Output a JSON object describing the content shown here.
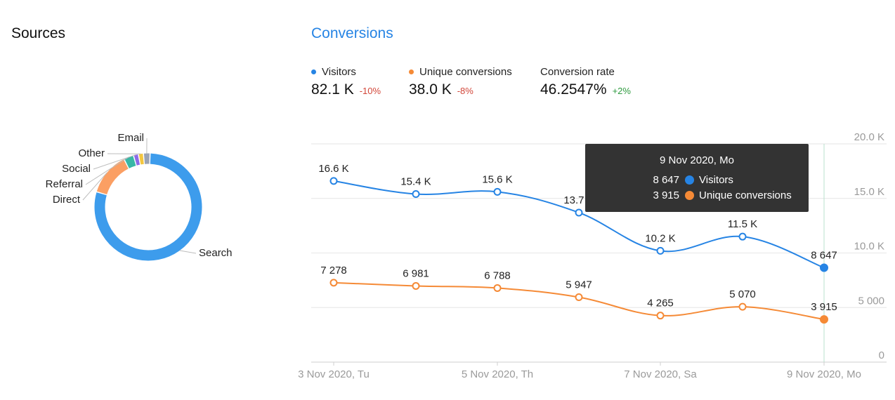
{
  "sources": {
    "title": "Sources",
    "chart_data": {
      "type": "pie",
      "categories": [
        "Search",
        "Direct",
        "Referral",
        "Social",
        "Other",
        "Email"
      ],
      "values": [
        79,
        13,
        3,
        1.5,
        1.5,
        2
      ],
      "colors": [
        "#3d9cec",
        "#fb9f63",
        "#39b7a6",
        "#8d6be8",
        "#f3c63f",
        "#9aa3b5"
      ]
    }
  },
  "conversions": {
    "title": "Conversions",
    "kpis": [
      {
        "label": "Visitors",
        "value": "82.1 K",
        "delta": "-10%",
        "dot": "#2684e4",
        "trend": "neg"
      },
      {
        "label": "Unique conversions",
        "value": "38.0 K",
        "delta": "-8%",
        "dot": "#f58a36",
        "trend": "neg"
      },
      {
        "label": "Conversion rate",
        "value": "46.2547%",
        "delta": "+2%",
        "dot": "",
        "trend": "pos"
      }
    ],
    "tooltip": {
      "title": "9 Nov 2020, Mo",
      "rows": [
        {
          "value": "8 647",
          "label": "Visitors",
          "color": "#2684e4"
        },
        {
          "value": "3 915",
          "label": "Unique conversions",
          "color": "#f58a36"
        }
      ]
    }
  },
  "chart_data": {
    "type": "line",
    "x": [
      "3 Nov 2020, Tu",
      "4 Nov 2020",
      "5 Nov 2020, Th",
      "6 Nov 2020",
      "7 Nov 2020, Sa",
      "8 Nov 2020",
      "9 Nov 2020, Mo"
    ],
    "x_tick_labels": [
      "3 Nov 2020, Tu",
      "",
      "5 Nov 2020, Th",
      "",
      "7 Nov 2020, Sa",
      "",
      "9 Nov 2020, Mo"
    ],
    "y_tick_labels": [
      "0",
      "5 000",
      "10.0 K",
      "15.0 K",
      "20.0 K"
    ],
    "y_ticks": [
      0,
      5000,
      10000,
      15000,
      20000
    ],
    "ylim": [
      0,
      20000
    ],
    "grid": true,
    "series": [
      {
        "name": "Visitors",
        "color": "#2684e4",
        "values": [
          16600,
          15400,
          15600,
          13700,
          10200,
          11500,
          8647
        ],
        "labels": [
          "16.6 K",
          "15.4 K",
          "15.6 K",
          "13.7 K",
          "10.2 K",
          "11.5 K",
          "8 647"
        ]
      },
      {
        "name": "Unique conversions",
        "color": "#f58a36",
        "values": [
          7278,
          6981,
          6788,
          5947,
          4265,
          5070,
          3915
        ],
        "labels": [
          "7 278",
          "6 981",
          "6 788",
          "5 947",
          "4 265",
          "5 070",
          "3 915"
        ]
      }
    ],
    "highlighted_index": 6
  }
}
